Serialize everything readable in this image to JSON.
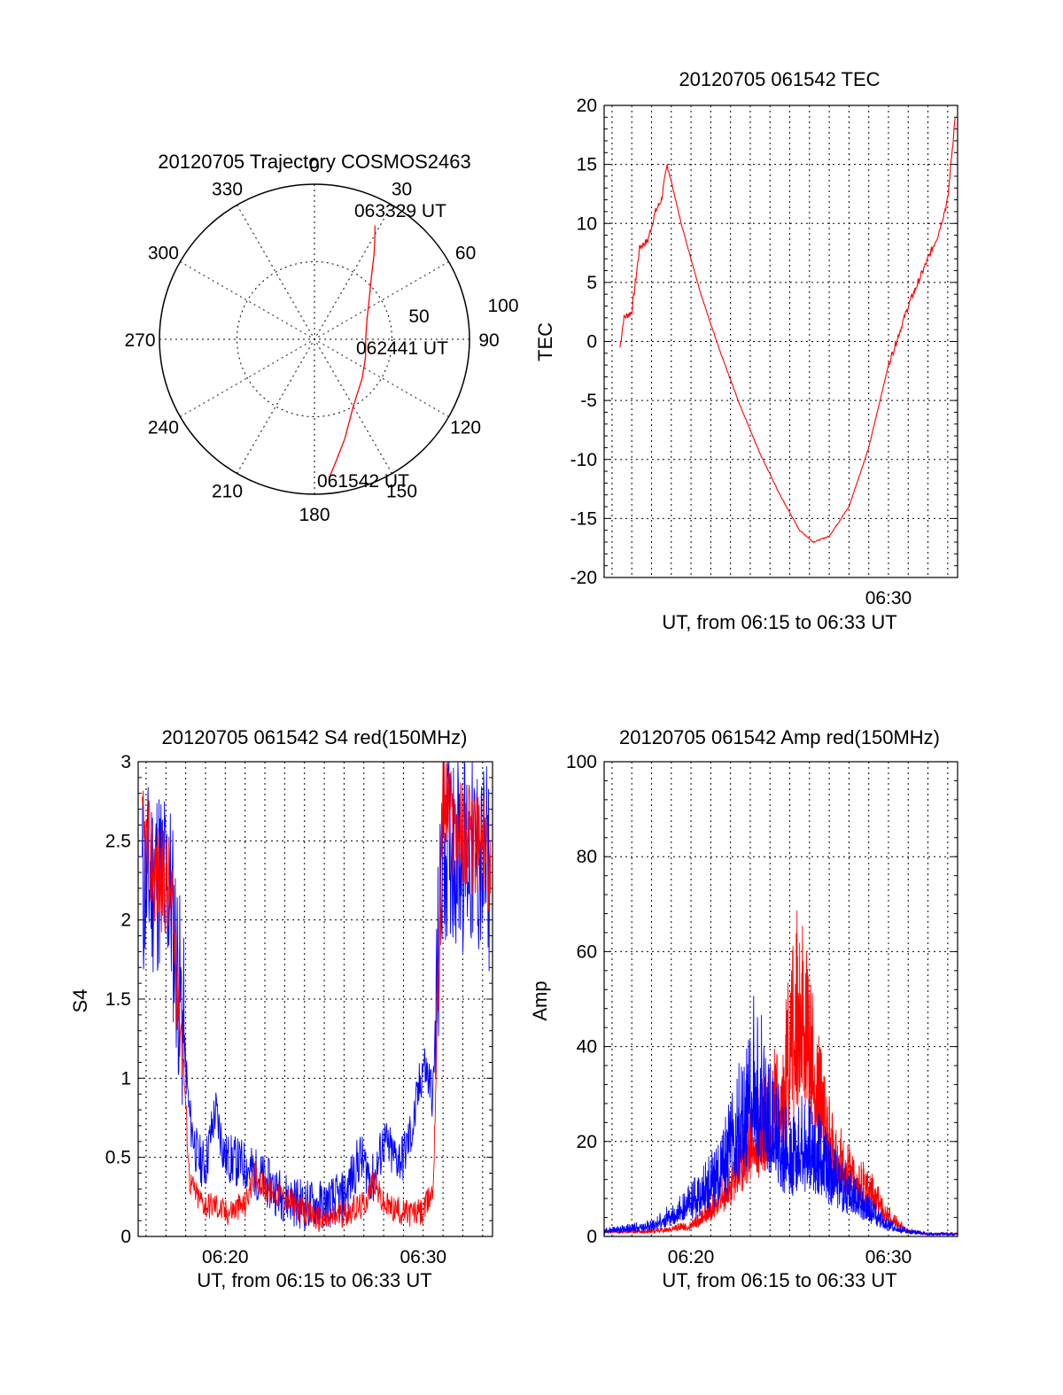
{
  "colors": {
    "red": "#ff0000",
    "blue": "#0000ff",
    "axis": "#000000"
  },
  "chart_data": [
    {
      "id": "trajectory",
      "type": "polar",
      "title": "20120705 Trajectory COSMOS2463",
      "azimuth_labels": [
        "0",
        "30",
        "60",
        "90",
        "120",
        "150",
        "180",
        "210",
        "240",
        "270",
        "300",
        "330"
      ],
      "radius_labels": [
        "50",
        "100"
      ],
      "rlim": [
        0,
        100
      ],
      "grid": true,
      "annotations": [
        "063329 UT",
        "062441 UT",
        "061542 UT"
      ],
      "series": [
        {
          "color": "red",
          "points_az_r": [
            [
              174,
              90
            ],
            [
              170,
              80
            ],
            [
              163,
              67
            ],
            [
              150,
              50
            ],
            [
              130,
              40
            ],
            [
              110,
              35
            ],
            [
              90,
              33
            ],
            [
              70,
              36
            ],
            [
              55,
              43
            ],
            [
              42,
              55
            ],
            [
              35,
              67
            ],
            [
              30,
              78
            ],
            [
              28,
              83
            ]
          ]
        }
      ]
    },
    {
      "id": "tec",
      "type": "line",
      "title": "20120705 061542 TEC",
      "xlabel": "UT, from 06:15 to 06:33 UT",
      "ylabel": "TEC",
      "xlim": [
        15.6,
        33.5
      ],
      "ylim": [
        -20,
        20
      ],
      "yticks": [
        "-20",
        "-15",
        "-10",
        "-5",
        "0",
        "5",
        "10",
        "15",
        "20"
      ],
      "xtick_labels": [
        "06:30"
      ],
      "grid": true,
      "series": [
        {
          "color": "red",
          "x": [
            16.4,
            16.6,
            17.0,
            17.4,
            17.8,
            18.2,
            18.5,
            18.8,
            19.5,
            20.5,
            21.5,
            22.5,
            23.5,
            24.5,
            25.5,
            26.2,
            27.0,
            28.0,
            29.0,
            30.0,
            30.5,
            31.0,
            31.5,
            32.0,
            32.5,
            33.0,
            33.4
          ],
          "y": [
            -0.5,
            2,
            2.5,
            8,
            8.5,
            11,
            12,
            15,
            10,
            4,
            -1,
            -5.5,
            -9.5,
            -13,
            -16,
            -17,
            -16.5,
            -14,
            -9,
            -2,
            0.5,
            3,
            5,
            7,
            9,
            12,
            19.5
          ]
        }
      ]
    },
    {
      "id": "s4",
      "type": "line",
      "title": "20120705 061542 S4 red(150MHz)",
      "xlabel": "UT, from 06:15 to 06:33 UT",
      "ylabel": "S4",
      "xlim": [
        15.6,
        33.5
      ],
      "ylim": [
        0,
        3
      ],
      "yticks": [
        "0",
        "0.5",
        "1",
        "1.5",
        "2",
        "2.5",
        "3"
      ],
      "xtick_labels": [
        "06:20",
        "06:30"
      ],
      "grid": true,
      "series": [
        {
          "color": "blue",
          "x": [
            15.8,
            16.5,
            17.2,
            17.8,
            18.2,
            18.6,
            19.0,
            19.5,
            20.0,
            21.0,
            22.0,
            23.0,
            24.0,
            25.0,
            26.0,
            26.8,
            27.5,
            28.0,
            28.5,
            29.0,
            29.5,
            30.0,
            30.5,
            31.0,
            31.5,
            32.5,
            33.4
          ],
          "y": [
            2.2,
            2.3,
            2.2,
            1.4,
            0.75,
            0.5,
            0.45,
            0.8,
            0.5,
            0.45,
            0.35,
            0.25,
            0.2,
            0.2,
            0.25,
            0.5,
            0.35,
            0.6,
            0.5,
            0.5,
            0.7,
            1.1,
            0.9,
            2.5,
            2.5,
            2.4,
            2.3
          ]
        },
        {
          "color": "red",
          "x": [
            15.8,
            16.5,
            17.2,
            17.8,
            18.2,
            18.6,
            19.0,
            19.5,
            20.0,
            21.0,
            21.5,
            22.0,
            23.0,
            24.0,
            25.0,
            26.0,
            27.0,
            27.5,
            28.0,
            29.0,
            30.0,
            30.5,
            31.0,
            31.5,
            32.5,
            33.4
          ],
          "y": [
            2.5,
            2.3,
            2.2,
            1.3,
            0.35,
            0.25,
            0.2,
            0.2,
            0.15,
            0.2,
            0.4,
            0.3,
            0.25,
            0.15,
            0.1,
            0.15,
            0.2,
            0.35,
            0.2,
            0.15,
            0.15,
            0.3,
            2.8,
            2.6,
            2.5,
            2.4
          ]
        }
      ]
    },
    {
      "id": "amp",
      "type": "line",
      "title": "20120705 061542 Amp red(150MHz)",
      "xlabel": "UT, from 06:15 to 06:33 UT",
      "ylabel": "Amp",
      "xlim": [
        15.6,
        33.5
      ],
      "ylim": [
        0,
        100
      ],
      "yticks": [
        "0",
        "20",
        "40",
        "60",
        "80",
        "100"
      ],
      "xtick_labels": [
        "06:20",
        "06:30"
      ],
      "grid": true,
      "series": [
        {
          "color": "red",
          "x": [
            15.6,
            18.0,
            20.0,
            21.0,
            22.0,
            23.0,
            24.0,
            25.0,
            25.5,
            26.0,
            27.0,
            28.0,
            29.0,
            30.0,
            31.0,
            32.0,
            33.5
          ],
          "y": [
            1,
            1,
            2,
            5,
            10,
            18,
            22,
            35,
            45,
            35,
            18,
            12,
            9,
            4,
            1,
            0.5,
            0.5
          ]
        },
        {
          "color": "blue",
          "x": [
            15.6,
            18.0,
            19.5,
            20.5,
            21.5,
            22.5,
            23.0,
            23.5,
            24.0,
            25.0,
            26.0,
            27.0,
            28.0,
            29.0,
            30.0,
            31.0,
            32.0,
            33.5
          ],
          "y": [
            1,
            2,
            5,
            8,
            12,
            22,
            28,
            30,
            22,
            15,
            18,
            12,
            8,
            5,
            2,
            1,
            0.5,
            0.5
          ]
        }
      ]
    }
  ]
}
